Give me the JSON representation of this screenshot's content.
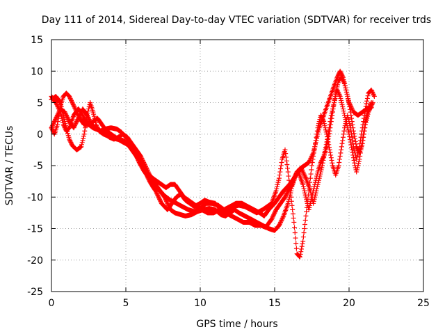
{
  "chart_data": {
    "type": "scatter",
    "title": "Day 111 of 2014, Sidereal Day-to-day VTEC variation (SDTVAR) for receiver trds",
    "xlabel": "GPS time / hours",
    "ylabel": "SDTVAR / TECUs",
    "xlim": [
      0,
      25
    ],
    "ylim": [
      -25,
      15
    ],
    "xticks": [
      "0",
      "5",
      "10",
      "15",
      "20",
      "25"
    ],
    "yticks": [
      "15",
      "10",
      "5",
      "0",
      "-5",
      "-10",
      "-15",
      "-20",
      "-25"
    ],
    "grid": true,
    "marker": "+",
    "color": "#ff0000",
    "series": [
      {
        "points": [
          [
            0.0,
            6.0
          ],
          [
            0.3,
            5.0
          ],
          [
            0.6,
            3.5
          ],
          [
            0.8,
            1.5
          ],
          [
            1.0,
            0.5
          ],
          [
            1.2,
            1.0
          ],
          [
            1.5,
            3.0
          ],
          [
            1.8,
            4.0
          ],
          [
            2.0,
            3.5
          ],
          [
            2.2,
            2.5
          ],
          [
            2.5,
            1.5
          ],
          [
            2.8,
            1.0
          ],
          [
            3.0,
            0.8
          ],
          [
            3.3,
            0.5
          ],
          [
            3.6,
            0.8
          ],
          [
            4.0,
            1.0
          ],
          [
            4.4,
            0.8
          ],
          [
            4.7,
            0.3
          ],
          [
            5.0,
            -0.5
          ],
          [
            5.3,
            -1.8
          ],
          [
            5.6,
            -3.0
          ],
          [
            5.9,
            -4.5
          ],
          [
            6.2,
            -5.8
          ],
          [
            6.5,
            -6.8
          ],
          [
            6.8,
            -7.5
          ],
          [
            7.0,
            -8.0
          ],
          [
            7.3,
            -9.0
          ],
          [
            7.6,
            -10.0
          ],
          [
            7.8,
            -11.0
          ],
          [
            8.0,
            -12.0
          ],
          [
            8.3,
            -12.5
          ],
          [
            8.7,
            -12.8
          ],
          [
            9.0,
            -13.0
          ],
          [
            9.4,
            -12.8
          ],
          [
            9.8,
            -12.3
          ],
          [
            10.2,
            -12.0
          ],
          [
            10.6,
            -11.8
          ],
          [
            11.0,
            -12.0
          ],
          [
            11.4,
            -12.8
          ],
          [
            11.7,
            -13.0
          ],
          [
            12.0,
            -12.5
          ],
          [
            12.3,
            -12.0
          ],
          [
            12.6,
            -12.5
          ],
          [
            13.0,
            -13.0
          ],
          [
            13.4,
            -13.5
          ],
          [
            13.8,
            -14.0
          ],
          [
            14.2,
            -14.5
          ],
          [
            14.6,
            -15.0
          ],
          [
            15.0,
            -15.3
          ],
          [
            15.3,
            -14.5
          ],
          [
            15.6,
            -13.0
          ],
          [
            15.9,
            -11.0
          ],
          [
            16.1,
            -9.0
          ],
          [
            16.3,
            -7.0
          ],
          [
            16.5,
            -6.0
          ],
          [
            16.7,
            -5.5
          ],
          [
            17.0,
            -5.0
          ],
          [
            17.3,
            -4.5
          ],
          [
            17.6,
            -3.0
          ],
          [
            17.8,
            -1.0
          ],
          [
            18.0,
            1.0
          ],
          [
            18.3,
            3.0
          ],
          [
            18.6,
            5.0
          ],
          [
            18.9,
            7.0
          ],
          [
            19.2,
            9.0
          ],
          [
            19.4,
            10.0
          ],
          [
            19.6,
            9.0
          ],
          [
            19.8,
            7.0
          ],
          [
            20.0,
            5.0
          ],
          [
            20.3,
            3.5
          ],
          [
            20.6,
            3.0
          ],
          [
            20.9,
            3.5
          ],
          [
            21.2,
            4.0
          ],
          [
            21.5,
            4.2
          ]
        ]
      },
      {
        "points": [
          [
            0.0,
            1.0
          ],
          [
            0.2,
            0.0
          ],
          [
            0.4,
            1.5
          ],
          [
            0.6,
            4.5
          ],
          [
            0.8,
            6.0
          ],
          [
            1.0,
            6.5
          ],
          [
            1.2,
            6.0
          ],
          [
            1.4,
            5.0
          ],
          [
            1.6,
            4.0
          ],
          [
            1.9,
            2.5
          ],
          [
            2.2,
            1.5
          ],
          [
            2.5,
            1.5
          ],
          [
            2.8,
            2.0
          ],
          [
            3.1,
            2.5
          ],
          [
            3.4,
            1.5
          ],
          [
            3.7,
            0.5
          ],
          [
            4.0,
            0.0
          ],
          [
            4.3,
            -0.5
          ],
          [
            4.6,
            -1.0
          ],
          [
            5.0,
            -1.5
          ],
          [
            5.3,
            -2.0
          ],
          [
            5.6,
            -2.8
          ],
          [
            5.9,
            -3.8
          ],
          [
            6.2,
            -5.0
          ],
          [
            6.4,
            -6.0
          ],
          [
            6.6,
            -7.0
          ],
          [
            6.8,
            -8.0
          ],
          [
            7.0,
            -8.5
          ],
          [
            7.3,
            -9.0
          ],
          [
            7.6,
            -9.8
          ],
          [
            8.0,
            -10.5
          ],
          [
            8.4,
            -11.0
          ],
          [
            8.8,
            -11.5
          ],
          [
            9.2,
            -12.0
          ],
          [
            9.6,
            -12.3
          ],
          [
            10.0,
            -11.8
          ],
          [
            10.4,
            -11.0
          ],
          [
            10.8,
            -11.0
          ],
          [
            11.2,
            -11.3
          ],
          [
            11.6,
            -12.0
          ],
          [
            12.0,
            -11.5
          ],
          [
            12.4,
            -11.0
          ],
          [
            12.8,
            -11.0
          ],
          [
            13.2,
            -11.5
          ],
          [
            13.6,
            -12.0
          ],
          [
            14.0,
            -12.5
          ],
          [
            14.3,
            -13.0
          ],
          [
            14.6,
            -12.0
          ],
          [
            15.0,
            -11.0
          ],
          [
            15.3,
            -10.0
          ],
          [
            15.6,
            -9.0
          ],
          [
            16.0,
            -8.0
          ],
          [
            16.3,
            -7.0
          ],
          [
            16.6,
            -6.0
          ],
          [
            16.9,
            -8.0
          ],
          [
            17.1,
            -10.0
          ],
          [
            17.3,
            -12.0
          ],
          [
            17.5,
            -10.0
          ],
          [
            17.7,
            -8.0
          ],
          [
            17.9,
            -6.0
          ],
          [
            18.1,
            -4.5
          ],
          [
            18.3,
            -3.5
          ],
          [
            18.5,
            -2.0
          ],
          [
            18.7,
            0.5
          ],
          [
            18.9,
            3.5
          ],
          [
            19.1,
            6.5
          ],
          [
            19.3,
            8.5
          ],
          [
            19.5,
            9.0
          ],
          [
            19.7,
            8.0
          ],
          [
            19.9,
            6.0
          ],
          [
            20.1,
            3.5
          ],
          [
            20.3,
            0.5
          ],
          [
            20.5,
            -2.0
          ],
          [
            20.7,
            -3.0
          ],
          [
            20.9,
            -1.5
          ],
          [
            21.1,
            1.5
          ],
          [
            21.3,
            3.5
          ],
          [
            21.6,
            5.0
          ]
        ]
      },
      {
        "points": [
          [
            0.0,
            5.5
          ],
          [
            0.3,
            6.0
          ],
          [
            0.6,
            5.0
          ],
          [
            0.8,
            3.0
          ],
          [
            1.0,
            1.0
          ],
          [
            1.2,
            -0.8
          ],
          [
            1.4,
            -1.8
          ],
          [
            1.7,
            -2.5
          ],
          [
            2.0,
            -2.0
          ],
          [
            2.2,
            0.0
          ],
          [
            2.4,
            3.0
          ],
          [
            2.6,
            5.0
          ],
          [
            2.8,
            3.5
          ],
          [
            3.0,
            1.5
          ],
          [
            3.2,
            0.5
          ],
          [
            3.5,
            0.0
          ],
          [
            3.8,
            -0.3
          ],
          [
            4.1,
            -0.6
          ],
          [
            4.4,
            -0.8
          ],
          [
            4.8,
            -1.0
          ],
          [
            5.1,
            -1.5
          ],
          [
            5.4,
            -2.5
          ],
          [
            5.7,
            -3.5
          ],
          [
            6.0,
            -4.5
          ],
          [
            6.2,
            -5.5
          ],
          [
            6.4,
            -6.5
          ],
          [
            6.6,
            -7.5
          ],
          [
            6.8,
            -8.3
          ],
          [
            7.0,
            -9.0
          ],
          [
            7.2,
            -10.0
          ],
          [
            7.4,
            -11.0
          ],
          [
            7.6,
            -11.5
          ],
          [
            7.8,
            -12.0
          ],
          [
            8.1,
            -11.0
          ],
          [
            8.4,
            -10.0
          ],
          [
            8.7,
            -9.5
          ],
          [
            9.0,
            -10.5
          ],
          [
            9.3,
            -11.0
          ],
          [
            9.6,
            -11.5
          ],
          [
            10.0,
            -11.0
          ],
          [
            10.3,
            -10.5
          ],
          [
            10.6,
            -10.8
          ],
          [
            11.0,
            -11.0
          ],
          [
            11.4,
            -12.0
          ],
          [
            11.8,
            -12.5
          ],
          [
            12.2,
            -11.5
          ],
          [
            12.6,
            -11.3
          ],
          [
            13.0,
            -11.5
          ],
          [
            13.4,
            -12.0
          ],
          [
            13.8,
            -12.5
          ],
          [
            14.2,
            -12.0
          ],
          [
            14.5,
            -11.5
          ],
          [
            14.8,
            -11.0
          ],
          [
            15.1,
            -9.0
          ],
          [
            15.3,
            -7.0
          ],
          [
            15.5,
            -4.0
          ],
          [
            15.7,
            -2.5
          ],
          [
            15.9,
            -6.0
          ],
          [
            16.1,
            -10.0
          ],
          [
            16.3,
            -14.0
          ],
          [
            16.5,
            -19.0
          ],
          [
            16.7,
            -19.5
          ],
          [
            16.9,
            -17.0
          ],
          [
            17.1,
            -13.0
          ],
          [
            17.3,
            -9.0
          ],
          [
            17.5,
            -5.0
          ],
          [
            17.7,
            -2.0
          ],
          [
            17.9,
            1.0
          ],
          [
            18.1,
            3.0
          ],
          [
            18.3,
            2.0
          ],
          [
            18.5,
            0.0
          ],
          [
            18.7,
            -2.5
          ],
          [
            18.9,
            -5.0
          ],
          [
            19.1,
            -6.5
          ],
          [
            19.3,
            -5.0
          ],
          [
            19.5,
            -2.0
          ],
          [
            19.7,
            1.0
          ],
          [
            19.9,
            3.0
          ],
          [
            20.1,
            1.0
          ],
          [
            20.3,
            -2.0
          ],
          [
            20.5,
            -4.0
          ],
          [
            20.7,
            -2.0
          ],
          [
            20.9,
            1.0
          ],
          [
            21.1,
            4.0
          ],
          [
            21.3,
            6.5
          ],
          [
            21.5,
            7.0
          ],
          [
            21.7,
            6.0
          ]
        ]
      },
      {
        "points": [
          [
            0.0,
            1.0
          ],
          [
            0.3,
            2.5
          ],
          [
            0.6,
            4.0
          ],
          [
            0.9,
            3.5
          ],
          [
            1.2,
            2.0
          ],
          [
            1.5,
            1.0
          ],
          [
            1.8,
            2.5
          ],
          [
            2.1,
            4.0
          ],
          [
            2.4,
            3.0
          ],
          [
            2.7,
            1.5
          ],
          [
            3.0,
            1.0
          ],
          [
            3.3,
            0.5
          ],
          [
            3.6,
            0.0
          ],
          [
            3.9,
            -0.5
          ],
          [
            4.2,
            -0.8
          ],
          [
            4.5,
            -0.5
          ],
          [
            4.8,
            0.0
          ],
          [
            5.1,
            -0.5
          ],
          [
            5.4,
            -1.5
          ],
          [
            5.7,
            -2.5
          ],
          [
            6.0,
            -3.5
          ],
          [
            6.2,
            -4.5
          ],
          [
            6.4,
            -5.5
          ],
          [
            6.6,
            -6.5
          ],
          [
            6.8,
            -7.0
          ],
          [
            7.1,
            -7.5
          ],
          [
            7.4,
            -8.0
          ],
          [
            7.7,
            -8.5
          ],
          [
            8.0,
            -8.0
          ],
          [
            8.3,
            -8.0
          ],
          [
            8.6,
            -9.0
          ],
          [
            8.9,
            -10.0
          ],
          [
            9.2,
            -10.5
          ],
          [
            9.5,
            -11.0
          ],
          [
            9.8,
            -11.5
          ],
          [
            10.1,
            -12.0
          ],
          [
            10.5,
            -12.5
          ],
          [
            10.9,
            -12.5
          ],
          [
            11.3,
            -12.0
          ],
          [
            11.7,
            -12.5
          ],
          [
            12.1,
            -13.0
          ],
          [
            12.5,
            -13.5
          ],
          [
            12.9,
            -14.0
          ],
          [
            13.3,
            -14.0
          ],
          [
            13.7,
            -14.5
          ],
          [
            14.1,
            -14.5
          ],
          [
            14.4,
            -14.8
          ],
          [
            14.8,
            -13.5
          ],
          [
            15.1,
            -12.0
          ],
          [
            15.4,
            -11.0
          ],
          [
            15.7,
            -10.0
          ],
          [
            15.9,
            -9.0
          ],
          [
            16.2,
            -8.0
          ],
          [
            16.5,
            -6.0
          ],
          [
            16.8,
            -5.5
          ],
          [
            17.1,
            -7.0
          ],
          [
            17.4,
            -9.0
          ],
          [
            17.6,
            -11.0
          ],
          [
            17.8,
            -9.0
          ],
          [
            18.0,
            -7.0
          ],
          [
            18.2,
            -5.0
          ],
          [
            18.4,
            -2.5
          ],
          [
            18.6,
            0.0
          ],
          [
            18.8,
            3.0
          ],
          [
            19.0,
            5.0
          ],
          [
            19.2,
            7.0
          ],
          [
            19.4,
            6.0
          ],
          [
            19.6,
            4.0
          ],
          [
            19.8,
            2.0
          ],
          [
            20.0,
            0.0
          ],
          [
            20.2,
            -2.5
          ],
          [
            20.4,
            -5.0
          ],
          [
            20.5,
            -6.0
          ],
          [
            20.7,
            -4.0
          ],
          [
            20.9,
            -1.0
          ],
          [
            21.1,
            2.0
          ],
          [
            21.3,
            4.0
          ],
          [
            21.5,
            5.0
          ]
        ]
      }
    ]
  }
}
